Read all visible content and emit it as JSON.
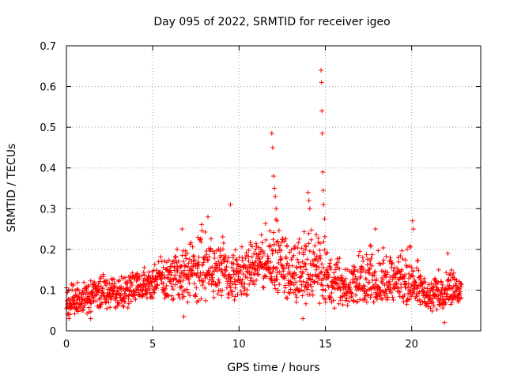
{
  "chart_data": {
    "type": "scatter",
    "title": "Day 095 of 2022, SRMTID for receiver igeo",
    "xlabel": "GPS time / hours",
    "ylabel": "SRMTID / TECUs",
    "xlim": [
      0,
      24
    ],
    "ylim": [
      0,
      0.7
    ],
    "xticks": [
      0,
      5,
      10,
      15,
      20
    ],
    "xtick_labels": [
      "0",
      "5",
      "10",
      "15",
      "20"
    ],
    "yticks": [
      0,
      0.1,
      0.2,
      0.3,
      0.4,
      0.5,
      0.6,
      0.7
    ],
    "ytick_labels": [
      "0",
      "0.1",
      "0.2",
      "0.3",
      "0.4",
      "0.5",
      "0.6",
      "0.7"
    ],
    "grid": true,
    "marker": "+",
    "color": "#ff0000",
    "x_range_of_data": [
      0,
      22.9
    ],
    "envelope": [
      {
        "x": 0.0,
        "low": 0.04,
        "typ": 0.07,
        "high": 0.12
      },
      {
        "x": 1.0,
        "low": 0.04,
        "typ": 0.08,
        "high": 0.12
      },
      {
        "x": 2.0,
        "low": 0.05,
        "typ": 0.1,
        "high": 0.14
      },
      {
        "x": 3.0,
        "low": 0.05,
        "typ": 0.09,
        "high": 0.14
      },
      {
        "x": 4.0,
        "low": 0.06,
        "typ": 0.11,
        "high": 0.15
      },
      {
        "x": 5.0,
        "low": 0.07,
        "typ": 0.12,
        "high": 0.17
      },
      {
        "x": 6.0,
        "low": 0.07,
        "typ": 0.13,
        "high": 0.2
      },
      {
        "x": 7.0,
        "low": 0.07,
        "typ": 0.14,
        "high": 0.24
      },
      {
        "x": 8.0,
        "low": 0.08,
        "typ": 0.15,
        "high": 0.27
      },
      {
        "x": 9.0,
        "low": 0.08,
        "typ": 0.15,
        "high": 0.24
      },
      {
        "x": 10.0,
        "low": 0.07,
        "typ": 0.12,
        "high": 0.2
      },
      {
        "x": 11.0,
        "low": 0.1,
        "typ": 0.16,
        "high": 0.24
      },
      {
        "x": 12.0,
        "low": 0.1,
        "typ": 0.18,
        "high": 0.3
      },
      {
        "x": 13.0,
        "low": 0.07,
        "typ": 0.14,
        "high": 0.22
      },
      {
        "x": 14.0,
        "low": 0.07,
        "typ": 0.15,
        "high": 0.3
      },
      {
        "x": 15.0,
        "low": 0.07,
        "typ": 0.13,
        "high": 0.24
      },
      {
        "x": 16.0,
        "low": 0.06,
        "typ": 0.1,
        "high": 0.17
      },
      {
        "x": 17.0,
        "low": 0.07,
        "typ": 0.12,
        "high": 0.2
      },
      {
        "x": 18.0,
        "low": 0.07,
        "typ": 0.12,
        "high": 0.22
      },
      {
        "x": 19.0,
        "low": 0.07,
        "typ": 0.11,
        "high": 0.18
      },
      {
        "x": 20.0,
        "low": 0.07,
        "typ": 0.12,
        "high": 0.22
      },
      {
        "x": 21.0,
        "low": 0.05,
        "typ": 0.08,
        "high": 0.14
      },
      {
        "x": 22.0,
        "low": 0.06,
        "typ": 0.1,
        "high": 0.16
      },
      {
        "x": 22.9,
        "low": 0.07,
        "typ": 0.1,
        "high": 0.14
      }
    ],
    "notable_points": [
      {
        "x": 0.15,
        "y": 0.03
      },
      {
        "x": 1.4,
        "y": 0.03
      },
      {
        "x": 6.8,
        "y": 0.035
      },
      {
        "x": 6.7,
        "y": 0.25
      },
      {
        "x": 8.2,
        "y": 0.28
      },
      {
        "x": 9.5,
        "y": 0.31
      },
      {
        "x": 11.9,
        "y": 0.485
      },
      {
        "x": 11.95,
        "y": 0.45
      },
      {
        "x": 12.0,
        "y": 0.38
      },
      {
        "x": 12.05,
        "y": 0.35
      },
      {
        "x": 12.1,
        "y": 0.33
      },
      {
        "x": 12.15,
        "y": 0.3
      },
      {
        "x": 12.2,
        "y": 0.27
      },
      {
        "x": 13.7,
        "y": 0.03
      },
      {
        "x": 14.0,
        "y": 0.34
      },
      {
        "x": 14.05,
        "y": 0.32
      },
      {
        "x": 14.1,
        "y": 0.3
      },
      {
        "x": 14.75,
        "y": 0.64
      },
      {
        "x": 14.78,
        "y": 0.61
      },
      {
        "x": 14.8,
        "y": 0.54
      },
      {
        "x": 14.82,
        "y": 0.485
      },
      {
        "x": 14.85,
        "y": 0.39
      },
      {
        "x": 14.88,
        "y": 0.345
      },
      {
        "x": 14.9,
        "y": 0.31
      },
      {
        "x": 14.95,
        "y": 0.275
      },
      {
        "x": 17.6,
        "y": 0.21
      },
      {
        "x": 17.9,
        "y": 0.25
      },
      {
        "x": 20.05,
        "y": 0.27
      },
      {
        "x": 20.1,
        "y": 0.25
      },
      {
        "x": 21.9,
        "y": 0.02
      },
      {
        "x": 22.1,
        "y": 0.19
      }
    ]
  }
}
